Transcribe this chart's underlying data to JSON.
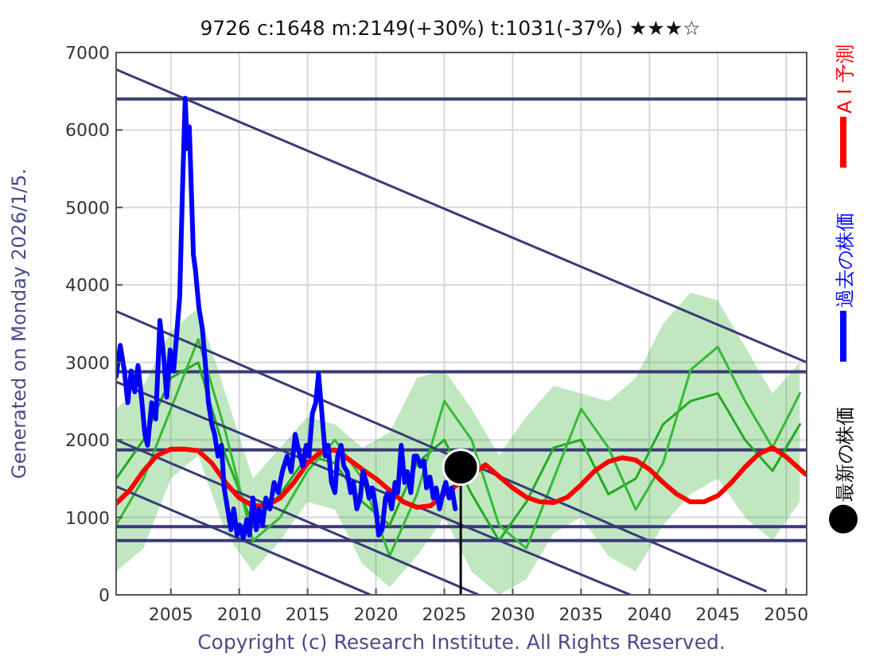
{
  "chart_data": {
    "type": "line",
    "title": "9726    c:1648  m:2149(+30%)  t:1031(-37%)  ★★★☆",
    "ylabel": "Generated on Monday 2026/1/5.",
    "annotations": [
      "Copyright (c) Research Institute. All Rights Reserved."
    ],
    "xlim": [
      2001,
      2051.5
    ],
    "xticks": [
      2005,
      2010,
      2015,
      2020,
      2025,
      2030,
      2035,
      2040,
      2045,
      2050
    ],
    "ylim": [
      0,
      7000
    ],
    "yticks": [
      0,
      1000,
      2000,
      3000,
      4000,
      5000,
      6000,
      7000
    ],
    "grid": true,
    "legend": "right",
    "ref_lines": [
      {
        "axis": "y",
        "value": 6400,
        "color": "#3a3a78"
      },
      {
        "axis": "y",
        "value": 2880,
        "color": "#3a3a78"
      },
      {
        "axis": "y",
        "value": 1870,
        "color": "#3a3a78"
      },
      {
        "axis": "y",
        "value": 880,
        "color": "#3a3a78"
      },
      {
        "axis": "y",
        "value": 700,
        "color": "#3a3a78"
      }
    ],
    "series": [
      {
        "color": "#22aa22",
        "x": [
          2001,
          2003,
          2005,
          2007,
          2009,
          2011,
          2013,
          2015,
          2017,
          2019,
          2021,
          2023,
          2025,
          2027,
          2029,
          2031,
          2033,
          2035,
          2037,
          2039,
          2041,
          2043,
          2045,
          2047,
          2049,
          2051
        ],
        "values": [
          1500,
          2000,
          2800,
          3000,
          1800,
          900,
          1300,
          1800,
          1700,
          1200,
          900,
          1700,
          2000,
          1300,
          700,
          1200,
          1900,
          2000,
          1300,
          1500,
          2200,
          2500,
          2600,
          2000,
          1600,
          2200
        ],
        "lower": [
          300,
          600,
          1500,
          1800,
          800,
          300,
          700,
          1200,
          1100,
          400,
          100,
          500,
          1000,
          300,
          0,
          200,
          800,
          1000,
          500,
          300,
          900,
          1300,
          1500,
          1000,
          700,
          1200
        ],
        "upper": [
          2400,
          2700,
          3400,
          3700,
          2600,
          1500,
          1900,
          2300,
          2200,
          1900,
          2100,
          2800,
          2900,
          2400,
          1800,
          2300,
          2700,
          2600,
          2500,
          2800,
          3500,
          3900,
          3800,
          3200,
          2600,
          3000
        ]
      },
      {
        "color": "#33bb33",
        "x": [
          2001,
          2003,
          2005,
          2007,
          2009,
          2011,
          2013,
          2015,
          2017,
          2019,
          2021,
          2023,
          2025,
          2027,
          2029,
          2031,
          2033,
          2035,
          2037,
          2039,
          2041,
          2043,
          2045,
          2047,
          2049,
          2051
        ],
        "values": [
          900,
          1500,
          2400,
          3300,
          2100,
          700,
          1000,
          1600,
          2000,
          1500,
          500,
          1300,
          2500,
          2000,
          900,
          600,
          1500,
          2400,
          1900,
          1100,
          1700,
          2900,
          3200,
          2500,
          1900,
          2600
        ]
      },
      {
        "color": "#3a3a78",
        "x": [
          2001,
          2051.5
        ],
        "values": [
          6780,
          3000
        ]
      },
      {
        "color": "#3a3a78",
        "x": [
          2001,
          2048.5
        ],
        "values": [
          3660,
          50
        ]
      },
      {
        "color": "#3a3a78",
        "x": [
          2001,
          2038.6
        ],
        "values": [
          2750,
          0
        ]
      },
      {
        "color": "#3a3a78",
        "x": [
          2001,
          2027.5
        ],
        "values": [
          2000,
          0
        ]
      },
      {
        "color": "#3a3a78",
        "x": [
          2001,
          2019.6
        ],
        "values": [
          1400,
          0
        ]
      },
      {
        "name": "A I 予測",
        "color": "#ff0000",
        "x": [
          2001,
          2002,
          2003,
          2004,
          2005,
          2006,
          2007,
          2008,
          2009,
          2010,
          2011,
          2012,
          2013,
          2014,
          2015,
          2016,
          2017,
          2018,
          2019,
          2020,
          2021,
          2022,
          2023,
          2024,
          2025,
          2028,
          2029,
          2030,
          2031,
          2032,
          2033,
          2034,
          2035,
          2036,
          2037,
          2038,
          2039,
          2040,
          2041,
          2042,
          2043,
          2044,
          2045,
          2046,
          2047,
          2048,
          2049,
          2050,
          2051.4
        ],
        "values": [
          1180,
          1350,
          1600,
          1800,
          1880,
          1880,
          1860,
          1700,
          1450,
          1250,
          1150,
          1150,
          1250,
          1450,
          1700,
          1850,
          1870,
          1750,
          1620,
          1500,
          1350,
          1200,
          1130,
          1150,
          1300,
          1680,
          1530,
          1380,
          1260,
          1200,
          1190,
          1260,
          1420,
          1600,
          1720,
          1770,
          1740,
          1620,
          1450,
          1300,
          1200,
          1200,
          1280,
          1450,
          1650,
          1820,
          1900,
          1780,
          1560
        ]
      },
      {
        "name": "過去の株価",
        "color": "#0000ff",
        "x": [
          2001.0,
          2001.3,
          2001.6,
          2001.85,
          2002.1,
          2002.35,
          2002.6,
          2002.85,
          2003.1,
          2003.3,
          2003.6,
          2003.9,
          2004.2,
          2004.5,
          2004.7,
          2004.95,
          2005.2,
          2005.4,
          2005.65,
          2005.85,
          2006.05,
          2006.2,
          2006.35,
          2006.5,
          2006.65,
          2006.8,
          2007.05,
          2007.3,
          2007.5,
          2007.75,
          2008.0,
          2008.2,
          2008.45,
          2008.7,
          2008.9,
          2009.15,
          2009.4,
          2009.6,
          2009.85,
          2010.05,
          2010.3,
          2010.55,
          2010.75,
          2011.0,
          2011.25,
          2011.45,
          2011.7,
          2011.95,
          2012.25,
          2012.55,
          2012.85,
          2013.15,
          2013.5,
          2013.8,
          2014.1,
          2014.35,
          2014.65,
          2014.9,
          2015.1,
          2015.35,
          2015.6,
          2015.8,
          2016.05,
          2016.3,
          2016.5,
          2016.75,
          2017.0,
          2017.2,
          2017.45,
          2017.65,
          2017.9,
          2018.15,
          2018.35,
          2018.6,
          2018.85,
          2019.05,
          2019.3,
          2019.5,
          2019.75,
          2020.0,
          2020.2,
          2020.45,
          2020.7,
          2020.9,
          2021.15,
          2021.4,
          2021.6,
          2021.85,
          2022.1,
          2022.3,
          2022.55,
          2022.8,
          2023.0,
          2023.25,
          2023.5,
          2023.7,
          2023.95,
          2024.2,
          2024.4,
          2024.65,
          2024.9,
          2025.1,
          2025.35,
          2025.55,
          2025.8
        ],
        "values": [
          2820,
          3220,
          2890,
          2480,
          2890,
          2620,
          2960,
          2550,
          2070,
          1930,
          2480,
          2270,
          3540,
          3030,
          2550,
          3160,
          2890,
          3300,
          3850,
          5220,
          6410,
          5760,
          6040,
          5220,
          4390,
          4190,
          3710,
          3440,
          3030,
          2480,
          2200,
          2070,
          1790,
          1930,
          1380,
          1110,
          840,
          1110,
          770,
          900,
          730,
          970,
          770,
          1250,
          840,
          1110,
          900,
          1250,
          1110,
          1450,
          1320,
          1590,
          1790,
          1590,
          2070,
          1860,
          1660,
          1930,
          1790,
          2340,
          2480,
          2850,
          2340,
          1790,
          1930,
          1450,
          1320,
          1790,
          1930,
          1660,
          1590,
          1320,
          1450,
          1110,
          1250,
          1590,
          1450,
          1250,
          1380,
          1110,
          770,
          840,
          1250,
          1320,
          1110,
          1450,
          1320,
          1930,
          1450,
          1590,
          1320,
          1790,
          1790,
          1660,
          1730,
          1380,
          1520,
          1250,
          1380,
          1110,
          1320,
          1450,
          1250,
          1380,
          1110
        ]
      },
      {
        "type": "lollipop",
        "name": "最新の株価",
        "color": "#000000",
        "x": [
          2026.2
        ],
        "values": [
          1648
        ]
      }
    ]
  }
}
